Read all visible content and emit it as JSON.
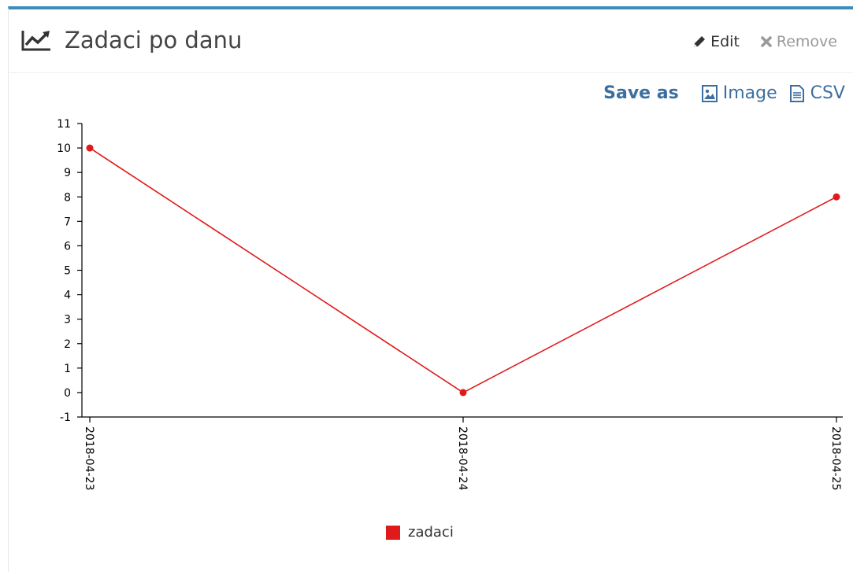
{
  "header": {
    "title": "Zadaci po danu",
    "edit_label": "Edit",
    "remove_label": "Remove"
  },
  "save_as": {
    "label": "Save as",
    "image_label": "Image",
    "csv_label": "CSV"
  },
  "colors": {
    "accent": "#3c8dbc",
    "series": "#e01a1a",
    "link": "#3c6fa0"
  },
  "chart_data": {
    "type": "line",
    "title": "",
    "xlabel": "",
    "ylabel": "",
    "categories": [
      "2018-04-23",
      "2018-04-24",
      "2018-04-25"
    ],
    "ylim": [
      -1,
      11
    ],
    "yticks": [
      -1,
      0,
      1,
      2,
      3,
      4,
      5,
      6,
      7,
      8,
      9,
      10,
      11
    ],
    "series": [
      {
        "name": "zadaci",
        "values": [
          10,
          0,
          8
        ]
      }
    ],
    "legend": "bottom-center",
    "grid": false
  }
}
